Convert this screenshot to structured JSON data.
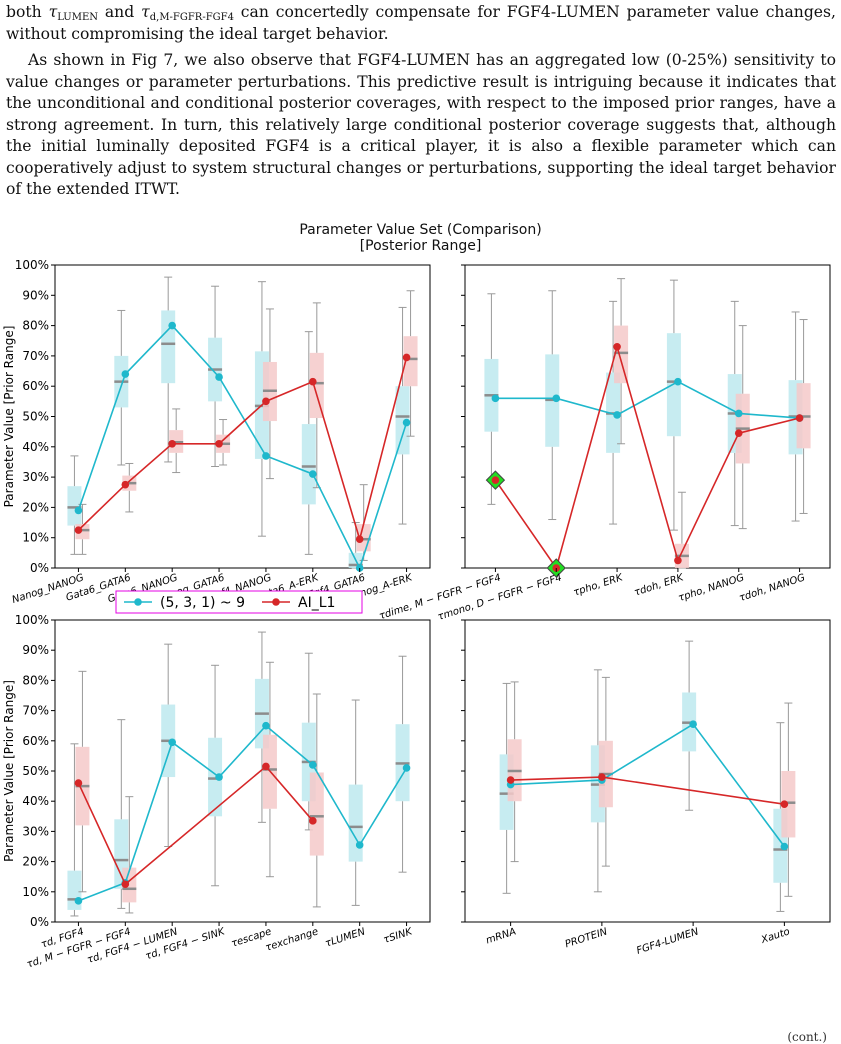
{
  "text": {
    "p1_pre1": "both ",
    "tau1": "τ",
    "tau1_sub": "LUMEN",
    "p1_mid": " and ",
    "tau2": "τ",
    "tau2_sub": "d,M-FGFR-FGF4",
    "p1_post": " can concertedly compensate for FGF4-LUMEN parameter value changes, without compromising the ideal target behavior.",
    "p2": "As shown in Fig 7, we also observe that FGF4-LUMEN has an aggregated low (0-25%) sensitivity to value changes or parameter perturbations. This predictive result is intriguing because it indicates that the unconditional and conditional posterior coverages, with respect to the imposed prior ranges, have a strong agreement. In turn, this relatively large conditional posterior coverage suggests that, although the initial luminally deposited FGF4 is a critical player, it is also a flexible parameter which can cooperatively adjust to system structural changes or perturbations, supporting the ideal target behavior of the extended ITWT.",
    "footer": "(cont.)"
  },
  "figure": {
    "title_line1": "Parameter Value Set (Comparison)",
    "title_line2": "[Posterior Range]",
    "ylabel": "Parameter Value [Prior Range]",
    "yticks": [
      "0%",
      "10%",
      "20%",
      "30%",
      "40%",
      "50%",
      "60%",
      "70%",
      "80%",
      "90%",
      "100%"
    ],
    "legend": {
      "series1": "(5, 3, 1) ~ 9",
      "series2": "AI_L1"
    },
    "colors": {
      "cyan": "#1fb8cc",
      "red": "#d62728",
      "cyan_box": "#bde9ef",
      "red_box": "#f5c9c9",
      "median": "#8c8c8c",
      "diamond": "#22dd22",
      "legend_border": "#e600e6"
    }
  },
  "chart_data": [
    {
      "type": "box",
      "categories": [
        "Nanog_NANOG",
        "Gata6_GATA6",
        "Gata6_NANOG",
        "Nanog_GATA6",
        "Fgf4_NANOG",
        "Gata6_A-ERK",
        "Fgf4_GATA6",
        "Nanog_A-ERK"
      ],
      "ylim": [
        0,
        100
      ],
      "series": [
        {
          "name": "(5, 3, 1) ~ 9",
          "points": [
            19,
            64,
            80,
            63,
            37,
            31,
            0,
            48
          ],
          "boxes": [
            [
              4.5,
              14,
              20,
              27,
              37
            ],
            [
              34,
              53,
              61.5,
              70,
              85
            ],
            [
              35,
              61,
              74,
              85,
              96
            ],
            [
              33.5,
              55,
              65.5,
              76,
              93
            ],
            [
              10.5,
              36,
              53.5,
              71.5,
              94.5
            ],
            [
              4.5,
              21,
              33.5,
              47.5,
              78
            ],
            [
              0,
              0,
              1,
              5,
              15
            ],
            [
              14.5,
              37.5,
              50,
              60,
              86
            ]
          ]
        },
        {
          "name": "AI_L1",
          "points": [
            12.5,
            27.5,
            41,
            41,
            55,
            61.5,
            9.5,
            69.5
          ],
          "boxes": [
            [
              4.5,
              9.5,
              12.5,
              14.5,
              21
            ],
            [
              18.5,
              25.5,
              28,
              30.5,
              34.5
            ],
            [
              31.5,
              38,
              41.5,
              45.5,
              52.5
            ],
            [
              34,
              38,
              41,
              44,
              49
            ],
            [
              29.5,
              48.5,
              58.5,
              68,
              85.5
            ],
            [
              26.5,
              49.5,
              61,
              71,
              87.5
            ],
            [
              2.5,
              5.5,
              9.5,
              14.5,
              27.5
            ],
            [
              43.5,
              60,
              69,
              76.5,
              91.5
            ]
          ]
        }
      ]
    },
    {
      "type": "box",
      "categories": [
        "τdime, M − FGFR − FGF4",
        "τmono, D − FGFR − FGF4",
        "τpho, ERK",
        "τdoh, ERK",
        "τpho, NANOG",
        "τdoh, NANOG"
      ],
      "ylim": [
        0,
        100
      ],
      "markers": [
        29,
        0
      ],
      "series": [
        {
          "name": "(5, 3, 1) ~ 9",
          "points": [
            56,
            56,
            50.5,
            61.5,
            51,
            49.5
          ],
          "boxes": [
            [
              21,
              45,
              57,
              69,
              90.5
            ],
            [
              16,
              40,
              55.5,
              70.5,
              91.5
            ],
            [
              14.5,
              38,
              51,
              64.5,
              88
            ],
            [
              12.5,
              43.5,
              61.5,
              77.5,
              95
            ],
            [
              14,
              38,
              51,
              64,
              88
            ],
            [
              15.5,
              37.5,
              50,
              62,
              84.5
            ]
          ]
        },
        {
          "name": "AI_L1",
          "points": [
            29,
            0,
            73,
            2.5,
            44.5,
            49.5
          ],
          "boxes": [
            null,
            null,
            [
              41,
              61,
              71,
              80,
              95.5
            ],
            [
              0,
              0,
              4,
              8,
              25
            ],
            [
              13,
              34.5,
              46,
              57.5,
              80
            ],
            [
              18,
              39.5,
              50,
              61,
              82
            ]
          ]
        }
      ]
    },
    {
      "type": "box",
      "categories": [
        "τd, FGF4",
        "τd, M − FGFR − FGF4",
        "τd, FGF4 − LUMEN",
        "τd, FGF4 − SINK",
        "τescape",
        "τexchange",
        "τLUMEN",
        "τSINK"
      ],
      "ylim": [
        0,
        100
      ],
      "series": [
        {
          "name": "(5, 3, 1) ~ 9",
          "points": [
            7,
            13,
            59.5,
            48,
            65,
            52,
            25.5,
            51
          ],
          "boxes": [
            [
              2,
              4,
              7.5,
              17,
              59
            ],
            [
              4.5,
              11,
              20.5,
              34,
              67
            ],
            [
              25,
              48,
              60,
              72,
              92
            ],
            [
              12,
              35,
              47.5,
              61,
              85
            ],
            [
              33,
              57.5,
              69,
              80.5,
              96
            ],
            [
              30.5,
              40,
              53,
              66,
              89
            ],
            [
              5.5,
              20,
              31.5,
              45.5,
              73.5
            ],
            [
              16.5,
              40,
              52.5,
              65.5,
              88
            ]
          ]
        },
        {
          "name": "AI_L1",
          "points": [
            46,
            12.5,
            null,
            null,
            51.5,
            33.5,
            null,
            null
          ],
          "boxes": [
            [
              10,
              32,
              45,
              58,
              83
            ],
            [
              3,
              6.5,
              11,
              18,
              41.5
            ],
            null,
            null,
            [
              15,
              37.5,
              50.5,
              62,
              86
            ],
            [
              5,
              22,
              35,
              49.5,
              75.5
            ],
            null,
            null
          ]
        }
      ]
    },
    {
      "type": "box",
      "categories": [
        "mRNA",
        "PROTEIN",
        "FGF4-LUMEN",
        "Xauto"
      ],
      "ylim": [
        0,
        100
      ],
      "series": [
        {
          "name": "(5, 3, 1) ~ 9",
          "points": [
            45.5,
            47,
            65.5,
            25
          ],
          "boxes": [
            [
              9.5,
              30.5,
              42.5,
              55.5,
              79
            ],
            [
              10,
              33,
              45.5,
              58.5,
              83.5
            ],
            [
              37,
              56.5,
              66,
              76,
              93
            ],
            [
              3.5,
              13,
              24,
              37.5,
              66
            ]
          ]
        },
        {
          "name": "AI_L1",
          "points": [
            47,
            48,
            null,
            39
          ],
          "boxes": [
            [
              20,
              40,
              50,
              60.5,
              79.5
            ],
            [
              18.5,
              38,
              49,
              60,
              81
            ],
            null,
            [
              8.5,
              28,
              39.5,
              50,
              72.5
            ]
          ]
        }
      ]
    }
  ]
}
